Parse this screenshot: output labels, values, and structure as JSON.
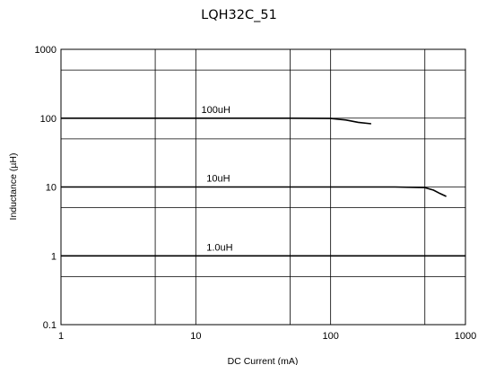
{
  "chart_data": {
    "type": "line",
    "title": "LQH32C_51",
    "xlabel": "DC Current (mA)",
    "ylabel": "Inductance (µH)",
    "xscale": "log",
    "yscale": "log",
    "xlim": [
      1,
      1000
    ],
    "ylim": [
      0.1,
      1000
    ],
    "xticks": [
      "1",
      "10",
      "100",
      "1000"
    ],
    "yticks": [
      "0.1",
      "1",
      "10",
      "100",
      "1000"
    ],
    "grid": true,
    "series": [
      {
        "name": "100uH",
        "label_at": [
          11,
          100
        ],
        "points": [
          [
            1,
            100
          ],
          [
            50,
            100
          ],
          [
            100,
            99
          ],
          [
            130,
            94
          ],
          [
            160,
            87
          ],
          [
            200,
            83
          ]
        ]
      },
      {
        "name": "10uH",
        "label_at": [
          12,
          10
        ],
        "points": [
          [
            1,
            10
          ],
          [
            300,
            10
          ],
          [
            500,
            9.8
          ],
          [
            580,
            9.0
          ],
          [
            650,
            8.0
          ],
          [
            720,
            7.3
          ]
        ]
      },
      {
        "name": "1.0uH",
        "label_at": [
          12,
          1
        ],
        "points": [
          [
            1,
            1
          ],
          [
            1000,
            1
          ]
        ]
      }
    ]
  }
}
